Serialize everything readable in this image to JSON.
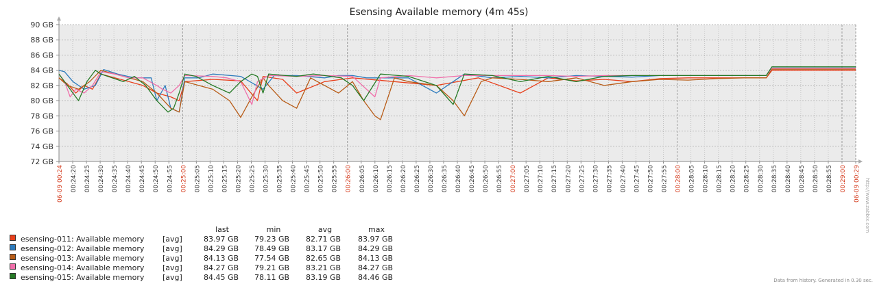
{
  "chart_data": {
    "type": "line",
    "title": "Esensing Available memory (4m 45s)",
    "xlabel": "",
    "ylabel": "",
    "ylim": [
      72,
      90
    ],
    "y_ticks": [
      "72 GB",
      "74 GB",
      "76 GB",
      "78 GB",
      "80 GB",
      "82 GB",
      "84 GB",
      "86 GB",
      "88 GB",
      "90 GB"
    ],
    "x_ticks": [
      "06-09 00:24",
      "00:24:20",
      "00:24:25",
      "00:24:30",
      "00:24:35",
      "00:24:40",
      "00:24:45",
      "00:24:50",
      "00:24:55",
      "00:25:00",
      "00:25:05",
      "00:25:10",
      "00:25:15",
      "00:25:20",
      "00:25:25",
      "00:25:30",
      "00:25:35",
      "00:25:40",
      "00:25:45",
      "00:25:50",
      "00:25:55",
      "00:26:00",
      "00:26:05",
      "00:26:10",
      "00:26:15",
      "00:26:20",
      "00:26:25",
      "00:26:30",
      "00:26:35",
      "00:26:40",
      "00:26:45",
      "00:26:50",
      "00:26:55",
      "00:27:00",
      "00:27:05",
      "00:27:10",
      "00:27:15",
      "00:27:20",
      "00:27:25",
      "00:27:30",
      "00:27:35",
      "00:27:40",
      "00:27:45",
      "00:27:50",
      "00:27:55",
      "00:28:00",
      "00:28:05",
      "00:28:10",
      "00:28:15",
      "00:28:20",
      "00:28:25",
      "00:28:30",
      "00:28:35",
      "00:28:40",
      "00:28:45",
      "00:28:50",
      "00:28:55",
      "00:29:00",
      "06-09 00:29"
    ],
    "major_ticks": [
      "06-09 00:24",
      "00:25:00",
      "00:26:00",
      "00:27:00",
      "00:28:00",
      "00:29:00",
      "06-09 00:29"
    ],
    "grid": true,
    "legend_position": "bottom-left",
    "x_seconds_range": [
      15,
      300
    ],
    "series": [
      {
        "name": "esensing-011: Available memory",
        "color": "#e8401c",
        "t": [
          15,
          18,
          21,
          24,
          27,
          30,
          35,
          40,
          45,
          50,
          55,
          58,
          60,
          70,
          80,
          86,
          88,
          95,
          100,
          110,
          120,
          135,
          150,
          165,
          180,
          190,
          200,
          210,
          220,
          230,
          240,
          250,
          260,
          268,
          270,
          300
        ],
        "values": [
          83.0,
          82.2,
          81.0,
          82.0,
          81.5,
          83.5,
          83.0,
          82.5,
          82.0,
          81.0,
          80.5,
          80.0,
          82.5,
          82.8,
          82.6,
          80.0,
          83.2,
          82.8,
          81.0,
          82.5,
          83.0,
          82.5,
          82.0,
          83.0,
          81.0,
          83.0,
          82.6,
          82.8,
          82.5,
          82.9,
          83.0,
          83.0,
          83.0,
          83.0,
          83.97,
          83.97
        ]
      },
      {
        "name": "esensing-012: Available memory",
        "color": "#2d7bbd",
        "t": [
          15,
          17,
          20,
          24,
          28,
          31,
          36,
          42,
          48,
          50,
          53,
          55,
          58,
          60,
          65,
          70,
          80,
          88,
          92,
          95,
          100,
          110,
          115,
          120,
          125,
          130,
          140,
          150,
          160,
          170,
          180,
          190,
          200,
          210,
          220,
          230,
          240,
          250,
          260,
          268,
          270,
          300
        ],
        "values": [
          84.0,
          83.8,
          82.5,
          81.5,
          82.0,
          84.1,
          83.5,
          83.0,
          83.0,
          80.0,
          82.0,
          79.0,
          78.5,
          83.0,
          83.0,
          83.5,
          83.2,
          81.5,
          83.3,
          83.3,
          83.3,
          83.0,
          83.3,
          83.3,
          83.0,
          83.0,
          83.0,
          81.0,
          83.5,
          83.0,
          83.2,
          83.0,
          83.3,
          83.2,
          83.1,
          83.3,
          83.3,
          83.3,
          83.3,
          83.3,
          84.29,
          84.29
        ]
      },
      {
        "name": "esensing-013: Available memory",
        "color": "#b85c17",
        "t": [
          15,
          18,
          22,
          26,
          30,
          35,
          40,
          45,
          50,
          55,
          58,
          60,
          65,
          70,
          76,
          80,
          84,
          88,
          90,
          95,
          100,
          105,
          110,
          115,
          120,
          124,
          128,
          130,
          135,
          140,
          150,
          156,
          160,
          166,
          170,
          180,
          190,
          200,
          210,
          220,
          230,
          240,
          250,
          260,
          268,
          270,
          300
        ],
        "values": [
          83.0,
          82.0,
          81.5,
          82.5,
          84.0,
          83.5,
          83.0,
          82.5,
          81.0,
          79.0,
          78.5,
          82.5,
          82.0,
          81.5,
          80.0,
          77.8,
          80.5,
          83.0,
          82.0,
          80.0,
          79.0,
          83.0,
          82.0,
          81.0,
          82.5,
          80.0,
          78.0,
          77.5,
          83.0,
          82.5,
          82.0,
          80.0,
          78.0,
          82.5,
          83.0,
          82.8,
          82.5,
          83.0,
          82.0,
          82.5,
          82.8,
          82.7,
          82.9,
          83.0,
          83.0,
          84.13,
          84.13
        ]
      },
      {
        "name": "esensing-014: Available memory",
        "color": "#f06faa",
        "t": [
          15,
          17,
          19,
          21,
          24,
          27,
          30,
          35,
          40,
          45,
          50,
          52,
          55,
          58,
          60,
          70,
          75,
          80,
          82,
          84,
          86,
          90,
          100,
          110,
          120,
          125,
          128,
          130,
          140,
          150,
          160,
          170,
          180,
          190,
          200,
          210,
          220,
          230,
          240,
          250,
          260,
          268,
          270,
          300
        ],
        "values": [
          83.5,
          82.5,
          80.5,
          81.5,
          81.0,
          82.0,
          83.8,
          83.5,
          83.0,
          83.0,
          82.0,
          81.5,
          81.0,
          82.0,
          83.3,
          83.2,
          83.0,
          82.5,
          81.0,
          79.5,
          82.5,
          83.3,
          83.2,
          83.3,
          83.2,
          81.5,
          80.5,
          83.0,
          83.3,
          83.0,
          83.3,
          83.3,
          83.3,
          83.3,
          83.2,
          83.3,
          83.3,
          83.3,
          83.3,
          83.3,
          83.3,
          83.3,
          84.27,
          84.27
        ]
      },
      {
        "name": "esensing-015: Available memory",
        "color": "#267a26",
        "t": [
          15,
          18,
          22,
          25,
          28,
          30,
          34,
          38,
          42,
          46,
          50,
          54,
          56,
          58,
          60,
          64,
          70,
          76,
          80,
          84,
          86,
          88,
          90,
          96,
          100,
          106,
          110,
          116,
          120,
          124,
          130,
          140,
          150,
          156,
          160,
          170,
          180,
          190,
          200,
          210,
          220,
          230,
          240,
          250,
          260,
          268,
          270,
          300
        ],
        "values": [
          83.5,
          82.0,
          80.0,
          82.5,
          84.0,
          83.5,
          83.0,
          82.5,
          83.2,
          82.0,
          80.0,
          78.5,
          79.0,
          81.0,
          83.5,
          83.2,
          82.0,
          81.0,
          82.5,
          83.5,
          83.2,
          81.0,
          83.5,
          83.3,
          83.2,
          83.5,
          83.3,
          83.0,
          82.0,
          80.0,
          83.5,
          83.2,
          82.0,
          79.5,
          83.5,
          83.3,
          82.5,
          83.2,
          82.5,
          83.2,
          83.3,
          83.3,
          83.3,
          83.3,
          83.3,
          83.3,
          84.45,
          84.45
        ]
      }
    ]
  },
  "legend": {
    "headers": {
      "last": "last",
      "min": "min",
      "avg": "avg",
      "max": "max"
    },
    "rows": [
      {
        "name": "esensing-011: Available memory",
        "func": "[avg]",
        "last": "83.97 GB",
        "min": "79.23 GB",
        "avg": "82.71 GB",
        "max": "83.97 GB",
        "color": "#e8401c"
      },
      {
        "name": "esensing-012: Available memory",
        "func": "[avg]",
        "last": "84.29 GB",
        "min": "78.49 GB",
        "avg": "83.17 GB",
        "max": "84.29 GB",
        "color": "#2d7bbd"
      },
      {
        "name": "esensing-013: Available memory",
        "func": "[avg]",
        "last": "84.13 GB",
        "min": "77.54 GB",
        "avg": "82.65 GB",
        "max": "84.13 GB",
        "color": "#b85c17"
      },
      {
        "name": "esensing-014: Available memory",
        "func": "[avg]",
        "last": "84.27 GB",
        "min": "79.21 GB",
        "avg": "83.21 GB",
        "max": "84.27 GB",
        "color": "#f06faa"
      },
      {
        "name": "esensing-015: Available memory",
        "func": "[avg]",
        "last": "84.45 GB",
        "min": "78.11 GB",
        "avg": "83.19 GB",
        "max": "84.46 GB",
        "color": "#267a26"
      }
    ]
  },
  "footer": {
    "note": "Data from history. Generated in 0.30 sec.",
    "side_url": "http://www.zabbix.com"
  }
}
